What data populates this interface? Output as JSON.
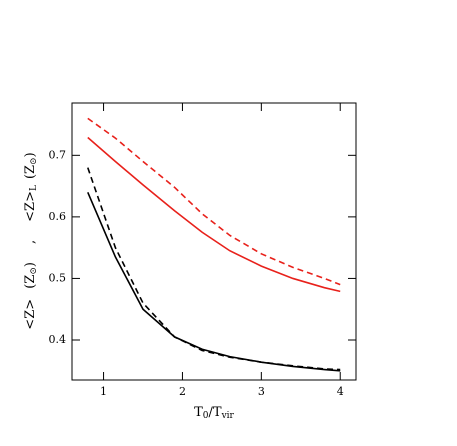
{
  "chart_data": {
    "type": "line",
    "x_label_parts": [
      "T",
      "0",
      "/T",
      "vir"
    ],
    "y_label_parts": [
      "<Z>",
      "(Z",
      "⊙",
      ")",
      ",",
      "<Z>",
      "L",
      "(Z",
      "⊙",
      ")"
    ],
    "x": [
      0.8,
      1.15,
      1.5,
      1.9,
      2.25,
      2.6,
      3.0,
      3.4,
      3.8,
      4.0
    ],
    "series": [
      {
        "color": "#e8211b",
        "dash": false,
        "values": [
          0.729,
          0.69,
          0.652,
          0.61,
          0.575,
          0.545,
          0.52,
          0.5,
          0.485,
          0.479
        ]
      },
      {
        "color": "#e8211b",
        "dash": true,
        "values": [
          0.76,
          0.728,
          0.69,
          0.648,
          0.605,
          0.57,
          0.54,
          0.518,
          0.5,
          0.49
        ]
      },
      {
        "color": "#000000",
        "dash": false,
        "values": [
          0.64,
          0.535,
          0.45,
          0.405,
          0.385,
          0.373,
          0.364,
          0.357,
          0.352,
          0.35
        ]
      },
      {
        "color": "#000000",
        "dash": true,
        "values": [
          0.68,
          0.55,
          0.46,
          0.405,
          0.383,
          0.372,
          0.364,
          0.358,
          0.353,
          0.352
        ]
      }
    ],
    "xlim": [
      0.6,
      4.2
    ],
    "xticks": [
      1,
      2,
      3,
      4
    ],
    "ylim": [
      0.335,
      0.785
    ],
    "yticks": [
      0.4,
      0.5,
      0.6,
      0.7
    ],
    "grid": false
  }
}
